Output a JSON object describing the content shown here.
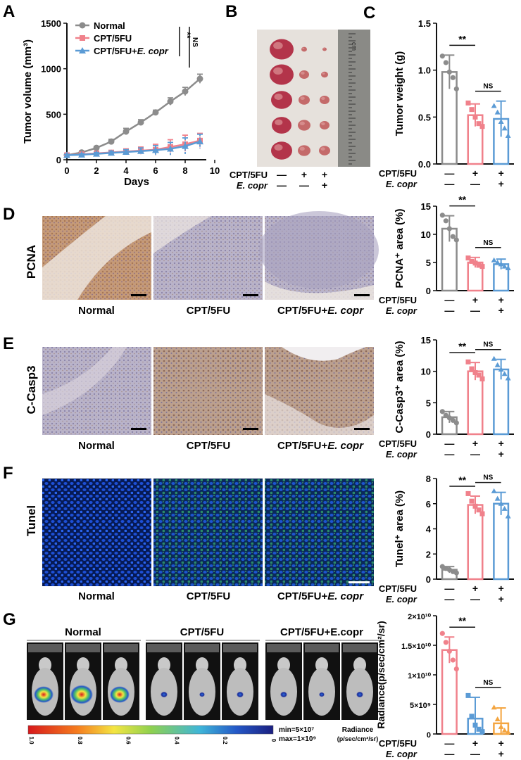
{
  "panels": {
    "A": "A",
    "B": "B",
    "C": "C",
    "D": "D",
    "E": "E",
    "F": "F",
    "G": "G"
  },
  "colors": {
    "normal": "#8c8c8c",
    "cpt": "#f0818b",
    "ecopr": "#5b9bd5",
    "ecopr_g": "#f4a540",
    "ink": "#111111"
  },
  "chart_data": [
    {
      "id": "A",
      "type": "line",
      "ylabel": "Tumor volume (mm³)",
      "xlabel": "Days",
      "xlim": [
        0,
        10
      ],
      "ylim": [
        0,
        1500
      ],
      "xticks": [
        "0",
        "2",
        "4",
        "6",
        "8",
        "10"
      ],
      "yticks": [
        "0",
        "500",
        "1000",
        "1500"
      ],
      "x": [
        0,
        1,
        2,
        3,
        4,
        5,
        6,
        7,
        8,
        9
      ],
      "series": [
        {
          "name": "Normal",
          "color": "#8c8c8c",
          "marker": "circle",
          "values": [
            50,
            80,
            130,
            200,
            310,
            410,
            520,
            640,
            750,
            890
          ],
          "err": [
            10,
            15,
            18,
            25,
            35,
            30,
            25,
            40,
            45,
            50
          ]
        },
        {
          "name": "CPT/5FU",
          "color": "#f0818b",
          "marker": "square",
          "values": [
            50,
            60,
            70,
            80,
            90,
            100,
            110,
            140,
            170,
            210
          ],
          "err": [
            10,
            12,
            15,
            20,
            30,
            40,
            60,
            80,
            100,
            80
          ]
        },
        {
          "name": "CPT/5FU+",
          "name_italic": "E. copr",
          "color": "#5b9bd5",
          "marker": "triangle",
          "values": [
            50,
            55,
            65,
            75,
            85,
            95,
            105,
            120,
            150,
            200
          ],
          "err": [
            10,
            12,
            15,
            20,
            25,
            35,
            50,
            70,
            90,
            80
          ]
        }
      ],
      "significance": [
        {
          "label": "**"
        },
        {
          "label": "NS"
        }
      ]
    },
    {
      "id": "C",
      "type": "bar",
      "ylabel": "Tumor weight (g)",
      "ylim": [
        0,
        1.5
      ],
      "yticks": [
        "0.0",
        "0.5",
        "1.0",
        "1.5"
      ],
      "groups": [
        "Normal",
        "CPT/5FU",
        "CPT/5FU+E. copr"
      ],
      "values": [
        0.98,
        0.52,
        0.48
      ],
      "err": [
        0.18,
        0.12,
        0.19
      ],
      "points": [
        [
          1.15,
          1.08,
          0.98,
          0.92,
          0.8
        ],
        [
          0.65,
          0.58,
          0.5,
          0.43,
          0.4
        ],
        [
          0.62,
          0.55,
          0.45,
          0.38,
          0.3
        ]
      ],
      "significance": [
        {
          "groups": [
            0,
            1
          ],
          "label": "**"
        },
        {
          "groups": [
            1,
            2
          ],
          "label": "NS"
        }
      ]
    },
    {
      "id": "D",
      "type": "bar",
      "ylabel": "PCNA⁺ area (%)",
      "ylim": [
        0,
        15
      ],
      "yticks": [
        "0",
        "5",
        "10",
        "15"
      ],
      "values": [
        11.0,
        5.0,
        4.7
      ],
      "err": [
        2.3,
        0.9,
        0.9
      ],
      "points": [
        [
          13.4,
          12.4,
          11.0,
          9.6,
          9.0
        ],
        [
          5.8,
          5.2,
          4.9,
          4.5,
          4.3
        ],
        [
          5.4,
          5.0,
          4.7,
          4.3,
          4.0
        ]
      ],
      "significance": [
        {
          "groups": [
            0,
            1
          ],
          "label": "**"
        },
        {
          "groups": [
            1,
            2
          ],
          "label": "NS"
        }
      ]
    },
    {
      "id": "E",
      "type": "bar",
      "ylabel": "C-Casp3⁺ area (%)",
      "ylim": [
        0,
        15
      ],
      "yticks": [
        "0",
        "5",
        "10",
        "15"
      ],
      "values": [
        2.7,
        10.0,
        10.3
      ],
      "err": [
        0.9,
        1.4,
        1.6
      ],
      "points": [
        [
          3.6,
          3.0,
          2.6,
          2.2,
          1.8
        ],
        [
          11.5,
          10.4,
          9.8,
          9.4,
          8.8
        ],
        [
          12.0,
          11.0,
          10.3,
          9.6,
          8.9
        ]
      ],
      "significance": [
        {
          "groups": [
            0,
            1
          ],
          "label": "**"
        },
        {
          "groups": [
            1,
            2
          ],
          "label": "NS"
        }
      ]
    },
    {
      "id": "F",
      "type": "bar",
      "ylabel": "Tunel⁺ area (%)",
      "ylim": [
        0,
        8
      ],
      "yticks": [
        "0",
        "2",
        "4",
        "6",
        "8"
      ],
      "values": [
        0.75,
        5.9,
        6.0
      ],
      "err": [
        0.25,
        0.7,
        0.9
      ],
      "points": [
        [
          1.0,
          0.85,
          0.75,
          0.6,
          0.5
        ],
        [
          6.8,
          6.2,
          5.8,
          5.5,
          5.2
        ],
        [
          7.0,
          6.4,
          6.0,
          5.6,
          5.0
        ]
      ],
      "significance": [
        {
          "groups": [
            0,
            1
          ],
          "label": "**"
        },
        {
          "groups": [
            1,
            2
          ],
          "label": "NS"
        }
      ]
    },
    {
      "id": "G",
      "type": "bar",
      "ylabel": "Radiance(p/sec/cm²/sr)",
      "ylim": [
        0,
        20000000000
      ],
      "yticks": [
        "0",
        "5×10⁹",
        "1×10¹⁰",
        "1.5×10¹⁰",
        "2×10¹⁰"
      ],
      "values": [
        14200000000,
        2600000000,
        1800000000
      ],
      "err": [
        2200000000,
        3600000000,
        2600000000
      ],
      "points": [
        [
          17000000000,
          15500000000,
          14000000000,
          12500000000,
          11000000000
        ],
        [
          6500000000,
          3000000000,
          1500000000,
          800000000,
          400000000
        ],
        [
          4500000000,
          2500000000,
          1200000000,
          600000000,
          300000000
        ]
      ],
      "significance": [
        {
          "groups": [
            0,
            1
          ],
          "label": "**"
        },
        {
          "groups": [
            1,
            2
          ],
          "label": "NS"
        }
      ]
    }
  ],
  "treatment_rows": {
    "row1_label": "CPT/5FU",
    "row2_label": "E. copr",
    "row1": [
      "—",
      "+",
      "+"
    ],
    "row2": [
      "—",
      "—",
      "+"
    ]
  },
  "micro_labels": {
    "normal": "Normal",
    "cpt": "CPT/5FU",
    "combo_plain": "CPT/5FU+",
    "combo_italic": "E. copr"
  },
  "stain_labels": {
    "D": "PCNA",
    "E": "C-Casp3",
    "F": "Tunel"
  },
  "ivis": {
    "group_labels": [
      "Normal",
      "CPT/5FU",
      "CPT/5FU+E.copr"
    ],
    "scale_ticks": [
      "1.0",
      "0.8",
      "0.6",
      "0.4",
      "0.2",
      "0"
    ],
    "minmax_min": "min=5×10⁷",
    "minmax_max": "max=1×10⁹",
    "radiance_title": "Radiance",
    "radiance_unit": "(p/sec/cm²/sr)"
  },
  "ruler_label": "cm"
}
